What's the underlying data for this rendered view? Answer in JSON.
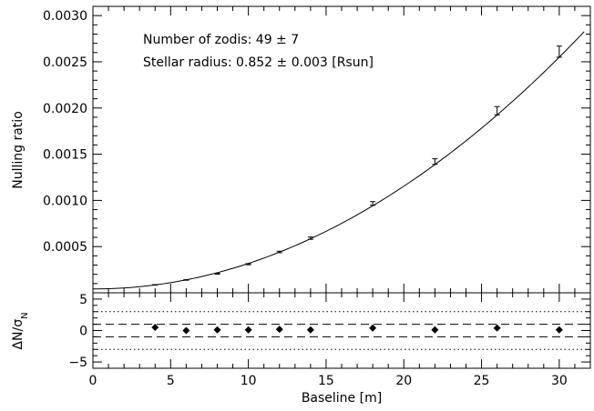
{
  "chart_data": [
    {
      "type": "line",
      "panel": "top",
      "xlabel": "Baseline [m]",
      "ylabel": "Nulling ratio",
      "xlim": [
        0,
        32
      ],
      "ylim": [
        0.0,
        0.0031
      ],
      "x_ticks": [
        0,
        5,
        10,
        15,
        20,
        25,
        30
      ],
      "y_ticks": [
        0.0005,
        0.001,
        0.0015,
        0.002,
        0.0025,
        0.003
      ],
      "y_tick_labels": [
        "0.0005",
        "0.0010",
        "0.0015",
        "0.0020",
        "0.0025",
        "0.0030"
      ],
      "grid": false,
      "annotations": [
        "Number of zodis: 49 ± 7",
        "Stellar radius: 0.852 ± 0.003 [Rsun]"
      ],
      "fit_curve": {
        "model": "quadratic",
        "coeffs": [
          4.22e-05,
          -4.9e-07,
          2.803e-06
        ],
        "x_range": [
          0,
          31.6
        ]
      },
      "measurements": {
        "x": [
          4,
          6,
          8,
          10,
          12,
          14,
          18,
          22,
          26,
          30
        ],
        "y": [
          8.63e-05,
          0.000139,
          0.000207,
          0.00031,
          0.000442,
          0.000591,
          0.000967,
          0.00142,
          0.00197,
          0.00261
        ],
        "err": [
          2e-06,
          3e-06,
          5e-06,
          6e-06,
          8e-06,
          1.2e-05,
          2e-05,
          3e-05,
          4.5e-05,
          6e-05
        ]
      }
    },
    {
      "type": "scatter",
      "panel": "bottom",
      "xlabel": "Baseline [m]",
      "ylabel": "ΔN/σN",
      "xlim": [
        0,
        32
      ],
      "ylim": [
        -6,
        6
      ],
      "x_ticks": [
        0,
        5,
        10,
        15,
        20,
        25,
        30
      ],
      "y_ticks": [
        -5,
        0,
        5
      ],
      "y_tick_labels": [
        "−5",
        "0",
        "5"
      ],
      "grid": false,
      "reference_lines": [
        {
          "y": 1,
          "style": "dashed"
        },
        {
          "y": -1,
          "style": "dashed"
        },
        {
          "y": 3,
          "style": "dotted"
        },
        {
          "y": -3,
          "style": "dotted"
        }
      ],
      "points": {
        "x": [
          4,
          6,
          8,
          10,
          12,
          14,
          18,
          22,
          26,
          30
        ],
        "y": [
          0.5,
          0.0,
          0.1,
          0.1,
          0.2,
          0.1,
          0.4,
          0.1,
          0.4,
          0.1
        ]
      }
    }
  ]
}
